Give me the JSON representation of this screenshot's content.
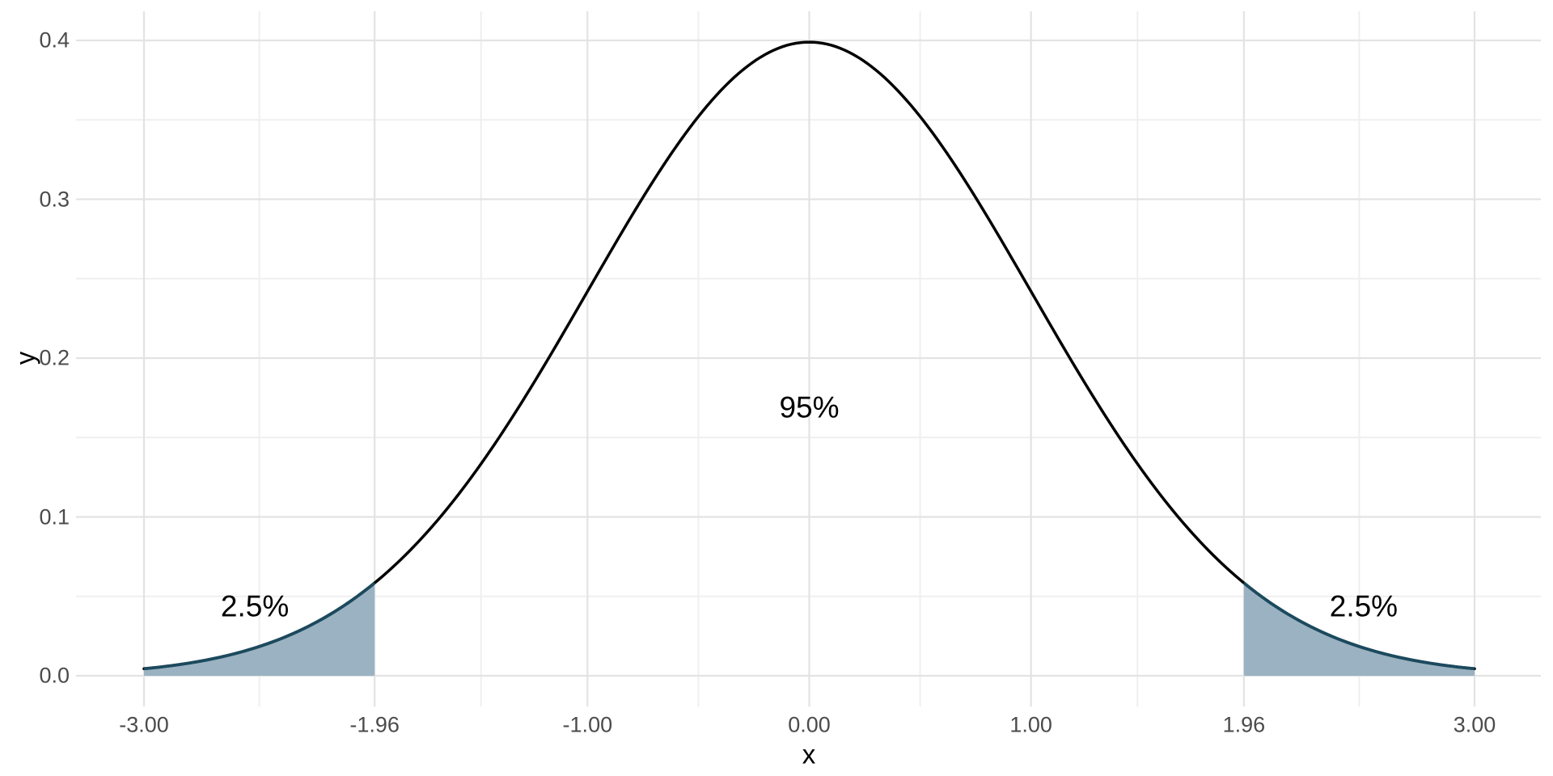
{
  "chart_data": {
    "type": "area",
    "title": "",
    "xlabel": "x",
    "ylabel": "y",
    "distribution": "standard normal pdf",
    "mean": 0,
    "sd": 1,
    "x_range": [
      -3,
      3
    ],
    "ylim": [
      0,
      0.4
    ],
    "grid": true,
    "legend": false,
    "x_breaks": [
      -3,
      -1.96,
      -1,
      0,
      1,
      1.96,
      3
    ],
    "x_tick_labels": [
      "-3.00",
      "-1.96",
      "-1.00",
      "0.00",
      "1.00",
      "1.96",
      "3.00"
    ],
    "x_minor_breaks": [
      -2.48,
      -1.48,
      -0.5,
      0.5,
      1.48,
      2.48
    ],
    "y_breaks": [
      0,
      0.1,
      0.2,
      0.3,
      0.4
    ],
    "y_tick_labels": [
      "0.0",
      "0.1",
      "0.2",
      "0.3",
      "0.4"
    ],
    "y_minor_breaks": [
      0.05,
      0.15,
      0.25,
      0.35
    ],
    "critical_values": [
      -1.96,
      1.96
    ],
    "shaded_regions": [
      {
        "from": -3,
        "to": -1.96,
        "label": "2.5%",
        "tail_probability": 0.025
      },
      {
        "from": 1.96,
        "to": 3,
        "label": "2.5%",
        "tail_probability": 0.025
      }
    ],
    "central_probability": 0.95,
    "annotations": [
      {
        "text": "2.5%",
        "x": -2.5,
        "y": 0.044
      },
      {
        "text": "95%",
        "x": 0,
        "y": 0.169
      },
      {
        "text": "2.5%",
        "x": 2.5,
        "y": 0.044
      }
    ],
    "curve_points": {
      "x": [
        -3,
        -2.75,
        -2.5,
        -2.25,
        -2,
        -1.96,
        -1.75,
        -1.5,
        -1.25,
        -1,
        -0.75,
        -0.5,
        -0.25,
        0,
        0.25,
        0.5,
        0.75,
        1,
        1.25,
        1.5,
        1.75,
        1.96,
        2,
        2.25,
        2.5,
        2.75,
        3
      ],
      "y": [
        0.0044,
        0.0091,
        0.0175,
        0.0317,
        0.054,
        0.0584,
        0.0863,
        0.1295,
        0.1826,
        0.242,
        0.3011,
        0.3521,
        0.3867,
        0.3989,
        0.3867,
        0.3521,
        0.3011,
        0.242,
        0.1826,
        0.1295,
        0.0863,
        0.0584,
        0.054,
        0.0317,
        0.0175,
        0.0091,
        0.0044
      ]
    },
    "colors": {
      "curve": "#000000",
      "tail_outline": "#1c4a5e",
      "tail_fill": "#9ab2c1",
      "grid_major": "#e3e3e3",
      "grid_minor": "#efefef",
      "tick_text": "#4b4b4b",
      "title_text": "#000000",
      "background": "#ffffff"
    }
  }
}
